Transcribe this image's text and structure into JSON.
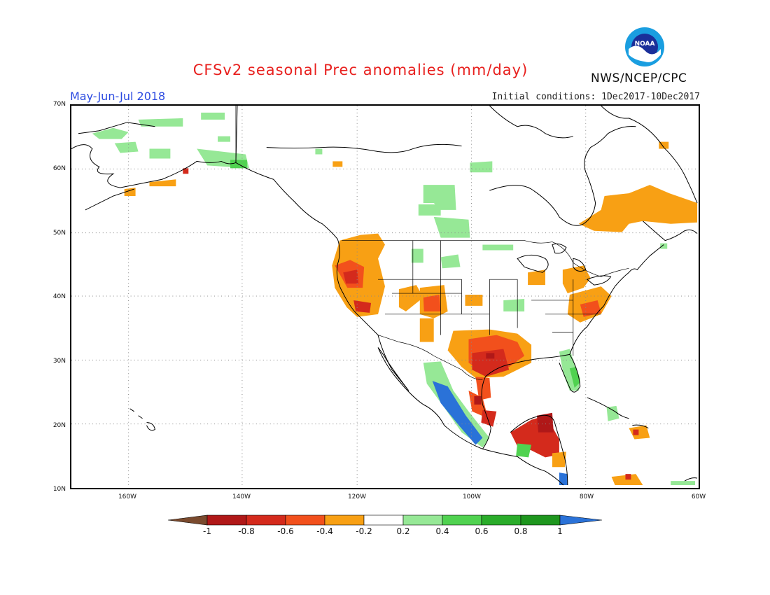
{
  "header": {
    "title": "CFSv2 seasonal Prec anomalies (mm/day)",
    "period": "May-Jun-Jul 2018",
    "initial_conditions": "Initial conditions: 1Dec2017-10Dec2017",
    "agency": "NWS/NCEP/CPC",
    "logo_text": "NOAA"
  },
  "map": {
    "lat_labels": [
      "70N",
      "60N",
      "50N",
      "40N",
      "30N",
      "20N",
      "10N"
    ],
    "lon_labels": [
      "160W",
      "140W",
      "120W",
      "100W",
      "80W",
      "60W"
    ]
  },
  "legend": {
    "tick_labels": [
      "-1",
      "-0.8",
      "-0.6",
      "-0.4",
      "-0.2",
      "0.2",
      "0.4",
      "0.6",
      "0.8",
      "1"
    ],
    "colors": {
      "lt_-1": "#7a4a2e",
      "-1_-0.8": "#b01818",
      "-0.8_-0.6": "#d42a1c",
      "-0.6_-0.4": "#f2501c",
      "-0.4_-0.2": "#f8a014",
      "-0.2_0.2": "#ffffff",
      "0.2_0.4": "#96e896",
      "0.4_0.6": "#50d250",
      "0.6_0.8": "#2aac2a",
      "0.8_1": "#1e961e",
      "gt_1": "#2a72d8"
    }
  }
}
